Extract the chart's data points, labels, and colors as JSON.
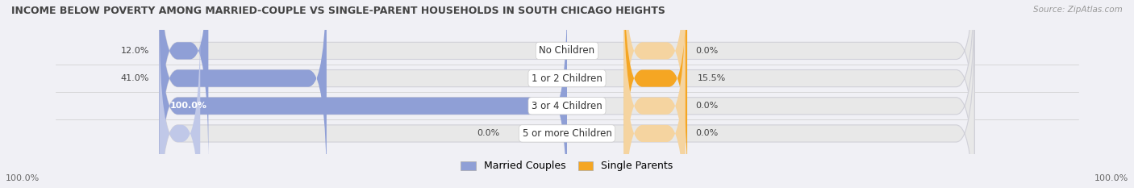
{
  "title": "INCOME BELOW POVERTY AMONG MARRIED-COUPLE VS SINGLE-PARENT HOUSEHOLDS IN SOUTH CHICAGO HEIGHTS",
  "source": "Source: ZipAtlas.com",
  "categories": [
    "No Children",
    "1 or 2 Children",
    "3 or 4 Children",
    "5 or more Children"
  ],
  "married_values": [
    12.0,
    41.0,
    100.0,
    0.0
  ],
  "single_values": [
    0.0,
    15.5,
    0.0,
    0.0
  ],
  "married_color": "#8f9fd6",
  "single_color": "#f5a623",
  "single_color_light": "#f5d4a0",
  "married_color_light": "#c0c8e8",
  "bar_bg_color": "#e8e8e8",
  "bar_bg_border": "#d0d0d8",
  "max_value": 100.0,
  "title_fontsize": 9.0,
  "source_fontsize": 7.5,
  "label_fontsize": 8.0,
  "category_fontsize": 8.5,
  "legend_fontsize": 9.0,
  "axis_label_left": "100.0%",
  "axis_label_right": "100.0%",
  "fig_width": 14.06,
  "fig_height": 2.33,
  "background_color": "#f0f0f5"
}
